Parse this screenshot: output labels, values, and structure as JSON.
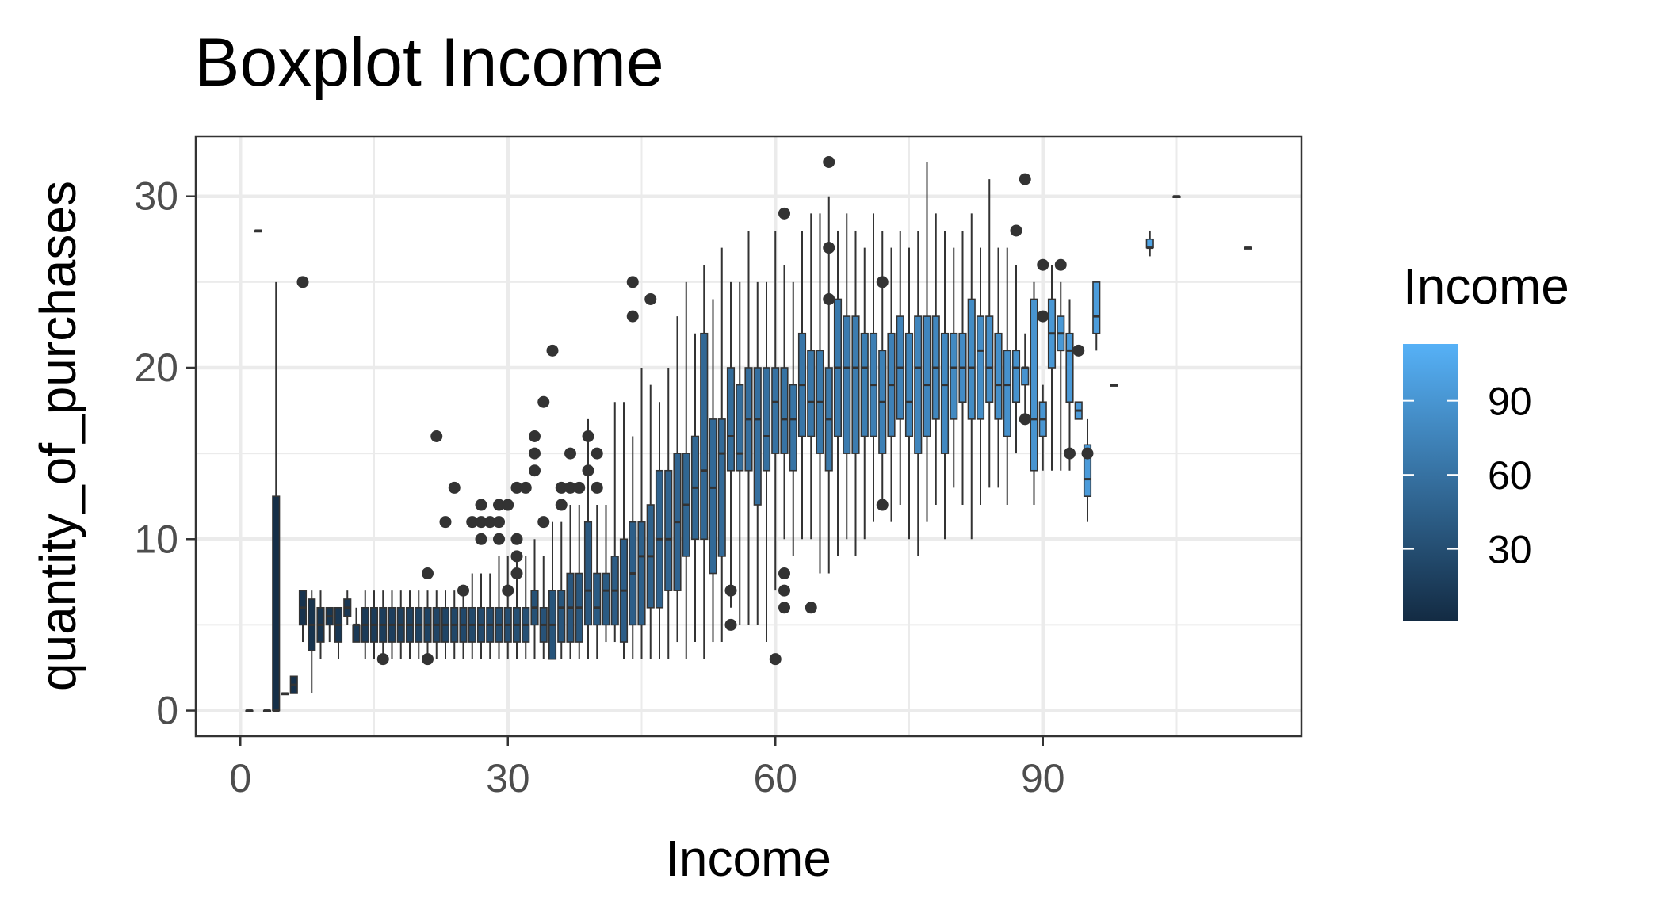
{
  "chart_data": {
    "type": "boxplot",
    "title": "Boxplot Income",
    "xlabel": "Income",
    "ylabel": "quantity_of_purchases",
    "xlim": [
      -5,
      119
    ],
    "ylim": [
      -1.5,
      33.5
    ],
    "x_ticks": [
      0,
      30,
      60,
      90
    ],
    "x_tick_labels": [
      "0",
      "30",
      "60",
      "90"
    ],
    "y_ticks": [
      0,
      10,
      20,
      30
    ],
    "y_tick_labels": [
      "0",
      "10",
      "20",
      "30"
    ],
    "grid": true,
    "fill_variable": "Income",
    "legend": {
      "title": "Income",
      "position": "right",
      "breaks": [
        90,
        60,
        30
      ],
      "labels": [
        "90",
        "60",
        "30"
      ],
      "range": [
        1,
        113
      ],
      "low_color": "#132B43",
      "high_color": "#56B1F7"
    },
    "colors": {
      "outline": "#333333",
      "grid": "#ebebeb",
      "panel_border": "#333333"
    },
    "boxes": [
      {
        "x": 1,
        "q1": 0,
        "median": 0,
        "q3": 0,
        "lower": 0,
        "upper": 0
      },
      {
        "x": 2,
        "q1": 28,
        "median": 28,
        "q3": 28,
        "lower": 28,
        "upper": 28
      },
      {
        "x": 3,
        "q1": 0,
        "median": 0,
        "q3": 0,
        "lower": 0,
        "upper": 0
      },
      {
        "x": 4,
        "q1": 0,
        "median": 0,
        "q3": 12.5,
        "lower": 0,
        "upper": 25
      },
      {
        "x": 5,
        "q1": 1,
        "median": 1,
        "q3": 1,
        "lower": 1,
        "upper": 1
      },
      {
        "x": 6,
        "q1": 1,
        "median": 1.5,
        "q3": 2,
        "lower": 1,
        "upper": 2
      },
      {
        "x": 7,
        "q1": 5,
        "median": 6,
        "q3": 7,
        "lower": 4,
        "upper": 7,
        "outliers": [
          25
        ]
      },
      {
        "x": 8,
        "q1": 3.5,
        "median": 5,
        "q3": 6.5,
        "lower": 1,
        "upper": 7
      },
      {
        "x": 9,
        "q1": 4,
        "median": 5,
        "q3": 6,
        "lower": 3,
        "upper": 7
      },
      {
        "x": 10,
        "q1": 5,
        "median": 5.5,
        "q3": 6,
        "lower": 4,
        "upper": 6
      },
      {
        "x": 11,
        "q1": 4,
        "median": 5,
        "q3": 6,
        "lower": 3,
        "upper": 6
      },
      {
        "x": 12,
        "q1": 5.5,
        "median": 6,
        "q3": 6.5,
        "lower": 5,
        "upper": 7
      },
      {
        "x": 13,
        "q1": 4,
        "median": 5,
        "q3": 5,
        "lower": 4,
        "upper": 6
      },
      {
        "x": 14,
        "q1": 4,
        "median": 5,
        "q3": 6,
        "lower": 3,
        "upper": 7
      },
      {
        "x": 15,
        "q1": 4,
        "median": 5,
        "q3": 6,
        "lower": 3,
        "upper": 7
      },
      {
        "x": 16,
        "q1": 4,
        "median": 5,
        "q3": 6,
        "lower": 3,
        "upper": 7,
        "outliers": [
          3
        ]
      },
      {
        "x": 17,
        "q1": 4,
        "median": 5,
        "q3": 6,
        "lower": 3,
        "upper": 7
      },
      {
        "x": 18,
        "q1": 4,
        "median": 5,
        "q3": 6,
        "lower": 3,
        "upper": 7
      },
      {
        "x": 19,
        "q1": 4,
        "median": 5,
        "q3": 6,
        "lower": 3,
        "upper": 7
      },
      {
        "x": 20,
        "q1": 4,
        "median": 5,
        "q3": 6,
        "lower": 3,
        "upper": 7
      },
      {
        "x": 21,
        "q1": 4,
        "median": 5,
        "q3": 6,
        "lower": 3,
        "upper": 7,
        "outliers": [
          3,
          8
        ]
      },
      {
        "x": 22,
        "q1": 4,
        "median": 5,
        "q3": 6,
        "lower": 3,
        "upper": 7,
        "outliers": [
          16
        ]
      },
      {
        "x": 23,
        "q1": 4,
        "median": 5,
        "q3": 6,
        "lower": 3,
        "upper": 7,
        "outliers": [
          11
        ]
      },
      {
        "x": 24,
        "q1": 4,
        "median": 5,
        "q3": 6,
        "lower": 3,
        "upper": 7,
        "outliers": [
          13
        ]
      },
      {
        "x": 25,
        "q1": 4,
        "median": 5,
        "q3": 6,
        "lower": 3,
        "upper": 7,
        "outliers": [
          7
        ]
      },
      {
        "x": 26,
        "q1": 4,
        "median": 5,
        "q3": 6,
        "lower": 3,
        "upper": 8,
        "outliers": [
          11
        ]
      },
      {
        "x": 27,
        "q1": 4,
        "median": 5,
        "q3": 6,
        "lower": 3,
        "upper": 8,
        "outliers": [
          10,
          11,
          12
        ]
      },
      {
        "x": 28,
        "q1": 4,
        "median": 5,
        "q3": 6,
        "lower": 3,
        "upper": 8,
        "outliers": [
          11
        ]
      },
      {
        "x": 29,
        "q1": 4,
        "median": 5,
        "q3": 6,
        "lower": 3,
        "upper": 9,
        "outliers": [
          10,
          11,
          12
        ]
      },
      {
        "x": 30,
        "q1": 4,
        "median": 5,
        "q3": 6,
        "lower": 3,
        "upper": 9,
        "outliers": [
          7,
          12
        ]
      },
      {
        "x": 31,
        "q1": 4,
        "median": 5,
        "q3": 6,
        "lower": 3,
        "upper": 9,
        "outliers": [
          8,
          9,
          10,
          13
        ]
      },
      {
        "x": 32,
        "q1": 4,
        "median": 5,
        "q3": 6,
        "lower": 3,
        "upper": 9,
        "outliers": [
          13
        ]
      },
      {
        "x": 33,
        "q1": 5,
        "median": 6,
        "q3": 7,
        "lower": 3,
        "upper": 10,
        "outliers": [
          14,
          15,
          16
        ]
      },
      {
        "x": 34,
        "q1": 4,
        "median": 5,
        "q3": 6,
        "lower": 3,
        "upper": 9,
        "outliers": [
          11,
          18
        ]
      },
      {
        "x": 35,
        "q1": 3,
        "median": 5,
        "q3": 7,
        "lower": 3,
        "upper": 11,
        "outliers": [
          21
        ]
      },
      {
        "x": 36,
        "q1": 4,
        "median": 6,
        "q3": 7,
        "lower": 3,
        "upper": 11,
        "outliers": [
          12,
          13
        ]
      },
      {
        "x": 37,
        "q1": 4,
        "median": 6,
        "q3": 8,
        "lower": 3,
        "upper": 12,
        "outliers": [
          13,
          15
        ]
      },
      {
        "x": 38,
        "q1": 4,
        "median": 6,
        "q3": 8,
        "lower": 3,
        "upper": 12,
        "outliers": [
          13
        ]
      },
      {
        "x": 39,
        "q1": 5,
        "median": 7,
        "q3": 11,
        "lower": 3,
        "upper": 17,
        "outliers": [
          14,
          16
        ]
      },
      {
        "x": 40,
        "q1": 5,
        "median": 6,
        "q3": 8,
        "lower": 3,
        "upper": 12,
        "outliers": [
          13,
          15
        ]
      },
      {
        "x": 41,
        "q1": 5,
        "median": 7,
        "q3": 8,
        "lower": 4,
        "upper": 12
      },
      {
        "x": 42,
        "q1": 5,
        "median": 7,
        "q3": 9,
        "lower": 4,
        "upper": 18
      },
      {
        "x": 43,
        "q1": 4,
        "median": 7,
        "q3": 10,
        "lower": 3,
        "upper": 18
      },
      {
        "x": 44,
        "q1": 5,
        "median": 8,
        "q3": 11,
        "lower": 3,
        "upper": 16,
        "outliers": [
          23,
          25
        ]
      },
      {
        "x": 45,
        "q1": 5,
        "median": 9,
        "q3": 11,
        "lower": 3,
        "upper": 20
      },
      {
        "x": 46,
        "q1": 6,
        "median": 9,
        "q3": 12,
        "lower": 3,
        "upper": 19,
        "outliers": [
          24
        ]
      },
      {
        "x": 47,
        "q1": 6,
        "median": 10,
        "q3": 14,
        "lower": 3,
        "upper": 18
      },
      {
        "x": 48,
        "q1": 7,
        "median": 10,
        "q3": 14,
        "lower": 3,
        "upper": 20
      },
      {
        "x": 49,
        "q1": 7,
        "median": 11,
        "q3": 15,
        "lower": 4,
        "upper": 23
      },
      {
        "x": 50,
        "q1": 9,
        "median": 12,
        "q3": 15,
        "lower": 3,
        "upper": 25
      },
      {
        "x": 51,
        "q1": 10,
        "median": 13,
        "q3": 16,
        "lower": 4,
        "upper": 22
      },
      {
        "x": 52,
        "q1": 10,
        "median": 14,
        "q3": 22,
        "lower": 3,
        "upper": 26
      },
      {
        "x": 53,
        "q1": 8,
        "median": 13,
        "q3": 17,
        "lower": 4,
        "upper": 24
      },
      {
        "x": 54,
        "q1": 9,
        "median": 15,
        "q3": 17,
        "lower": 4,
        "upper": 27
      },
      {
        "x": 55,
        "q1": 14,
        "median": 16,
        "q3": 20,
        "lower": 6,
        "upper": 25,
        "outliers": [
          5,
          7
        ]
      },
      {
        "x": 56,
        "q1": 14,
        "median": 15,
        "q3": 19,
        "lower": 5,
        "upper": 25
      },
      {
        "x": 57,
        "q1": 14,
        "median": 17,
        "q3": 20,
        "lower": 5,
        "upper": 28
      },
      {
        "x": 58,
        "q1": 12,
        "median": 17,
        "q3": 20,
        "lower": 5,
        "upper": 25
      },
      {
        "x": 59,
        "q1": 14,
        "median": 16,
        "q3": 20,
        "lower": 4,
        "upper": 25
      },
      {
        "x": 60,
        "q1": 15,
        "median": 18,
        "q3": 20,
        "lower": 7,
        "upper": 28,
        "outliers": [
          3
        ]
      },
      {
        "x": 61,
        "q1": 15,
        "median": 17,
        "q3": 20,
        "lower": 10,
        "upper": 26,
        "outliers": [
          6,
          7,
          8,
          29
        ]
      },
      {
        "x": 62,
        "q1": 14,
        "median": 17,
        "q3": 19,
        "lower": 9,
        "upper": 25
      },
      {
        "x": 63,
        "q1": 16,
        "median": 19,
        "q3": 22,
        "lower": 10,
        "upper": 28
      },
      {
        "x": 64,
        "q1": 16,
        "median": 18,
        "q3": 21,
        "lower": 10,
        "upper": 29,
        "outliers": [
          6
        ]
      },
      {
        "x": 65,
        "q1": 15,
        "median": 18,
        "q3": 21,
        "lower": 8,
        "upper": 29
      },
      {
        "x": 66,
        "q1": 14,
        "median": 17,
        "q3": 20,
        "lower": 8,
        "upper": 30,
        "outliers": [
          24,
          27,
          32
        ]
      },
      {
        "x": 67,
        "q1": 16,
        "median": 20,
        "q3": 24,
        "lower": 9,
        "upper": 28
      },
      {
        "x": 68,
        "q1": 15,
        "median": 20,
        "q3": 23,
        "lower": 10,
        "upper": 29
      },
      {
        "x": 69,
        "q1": 15,
        "median": 20,
        "q3": 23,
        "lower": 9,
        "upper": 28
      },
      {
        "x": 70,
        "q1": 16,
        "median": 20,
        "q3": 22,
        "lower": 10,
        "upper": 27
      },
      {
        "x": 71,
        "q1": 16,
        "median": 19,
        "q3": 22,
        "lower": 11,
        "upper": 29
      },
      {
        "x": 72,
        "q1": 15,
        "median": 18,
        "q3": 21,
        "lower": 12,
        "upper": 28,
        "outliers": [
          12,
          25
        ]
      },
      {
        "x": 73,
        "q1": 16,
        "median": 19,
        "q3": 22,
        "lower": 11,
        "upper": 27
      },
      {
        "x": 74,
        "q1": 17,
        "median": 20,
        "q3": 23,
        "lower": 12,
        "upper": 28
      },
      {
        "x": 75,
        "q1": 16,
        "median": 18,
        "q3": 22,
        "lower": 10,
        "upper": 27
      },
      {
        "x": 76,
        "q1": 15,
        "median": 20,
        "q3": 23,
        "lower": 9,
        "upper": 28
      },
      {
        "x": 77,
        "q1": 16,
        "median": 19,
        "q3": 23,
        "lower": 11,
        "upper": 32
      },
      {
        "x": 78,
        "q1": 17,
        "median": 20,
        "q3": 23,
        "lower": 12,
        "upper": 29
      },
      {
        "x": 79,
        "q1": 15,
        "median": 19,
        "q3": 22,
        "lower": 10,
        "upper": 28
      },
      {
        "x": 80,
        "q1": 17,
        "median": 20,
        "q3": 22,
        "lower": 13,
        "upper": 27
      },
      {
        "x": 81,
        "q1": 18,
        "median": 20,
        "q3": 22,
        "lower": 12,
        "upper": 28
      },
      {
        "x": 82,
        "q1": 17,
        "median": 20,
        "q3": 24,
        "lower": 10,
        "upper": 29
      },
      {
        "x": 83,
        "q1": 17,
        "median": 21,
        "q3": 23,
        "lower": 12,
        "upper": 27
      },
      {
        "x": 84,
        "q1": 18,
        "median": 20,
        "q3": 23,
        "lower": 13,
        "upper": 31
      },
      {
        "x": 85,
        "q1": 17,
        "median": 19,
        "q3": 22,
        "lower": 13,
        "upper": 27
      },
      {
        "x": 86,
        "q1": 16,
        "median": 19,
        "q3": 21,
        "lower": 12,
        "upper": 27
      },
      {
        "x": 87,
        "q1": 18,
        "median": 20,
        "q3": 21,
        "lower": 15,
        "upper": 26,
        "outliers": [
          28
        ]
      },
      {
        "x": 88,
        "q1": 19,
        "median": 20,
        "q3": 20,
        "lower": 17,
        "upper": 22,
        "outliers": [
          17,
          31
        ]
      },
      {
        "x": 89,
        "q1": 14,
        "median": 17,
        "q3": 24,
        "lower": 12,
        "upper": 25
      },
      {
        "x": 90,
        "q1": 16,
        "median": 17,
        "q3": 18,
        "lower": 14,
        "upper": 19,
        "outliers": [
          23,
          26
        ]
      },
      {
        "x": 91,
        "q1": 20,
        "median": 22,
        "q3": 24,
        "lower": 14,
        "upper": 26
      },
      {
        "x": 92,
        "q1": 21,
        "median": 22,
        "q3": 23,
        "lower": 14,
        "upper": 25,
        "outliers": [
          26
        ]
      },
      {
        "x": 93,
        "q1": 18,
        "median": 21,
        "q3": 22,
        "lower": 14,
        "upper": 24,
        "outliers": [
          15
        ]
      },
      {
        "x": 94,
        "q1": 17,
        "median": 17.5,
        "q3": 18,
        "lower": 17,
        "upper": 18,
        "outliers": [
          21
        ]
      },
      {
        "x": 95,
        "q1": 12.5,
        "median": 13.5,
        "q3": 15.5,
        "lower": 11,
        "upper": 17,
        "outliers": [
          15
        ]
      },
      {
        "x": 96,
        "q1": 22,
        "median": 23,
        "q3": 25,
        "lower": 21,
        "upper": 25
      },
      {
        "x": 98,
        "q1": 19,
        "median": 19,
        "q3": 19,
        "lower": 19,
        "upper": 19
      },
      {
        "x": 102,
        "q1": 27,
        "median": 27,
        "q3": 27.5,
        "lower": 26.5,
        "upper": 28
      },
      {
        "x": 105,
        "q1": 30,
        "median": 30,
        "q3": 30,
        "lower": 30,
        "upper": 30
      },
      {
        "x": 113,
        "q1": 27,
        "median": 27,
        "q3": 27,
        "lower": 27,
        "upper": 27
      }
    ]
  }
}
